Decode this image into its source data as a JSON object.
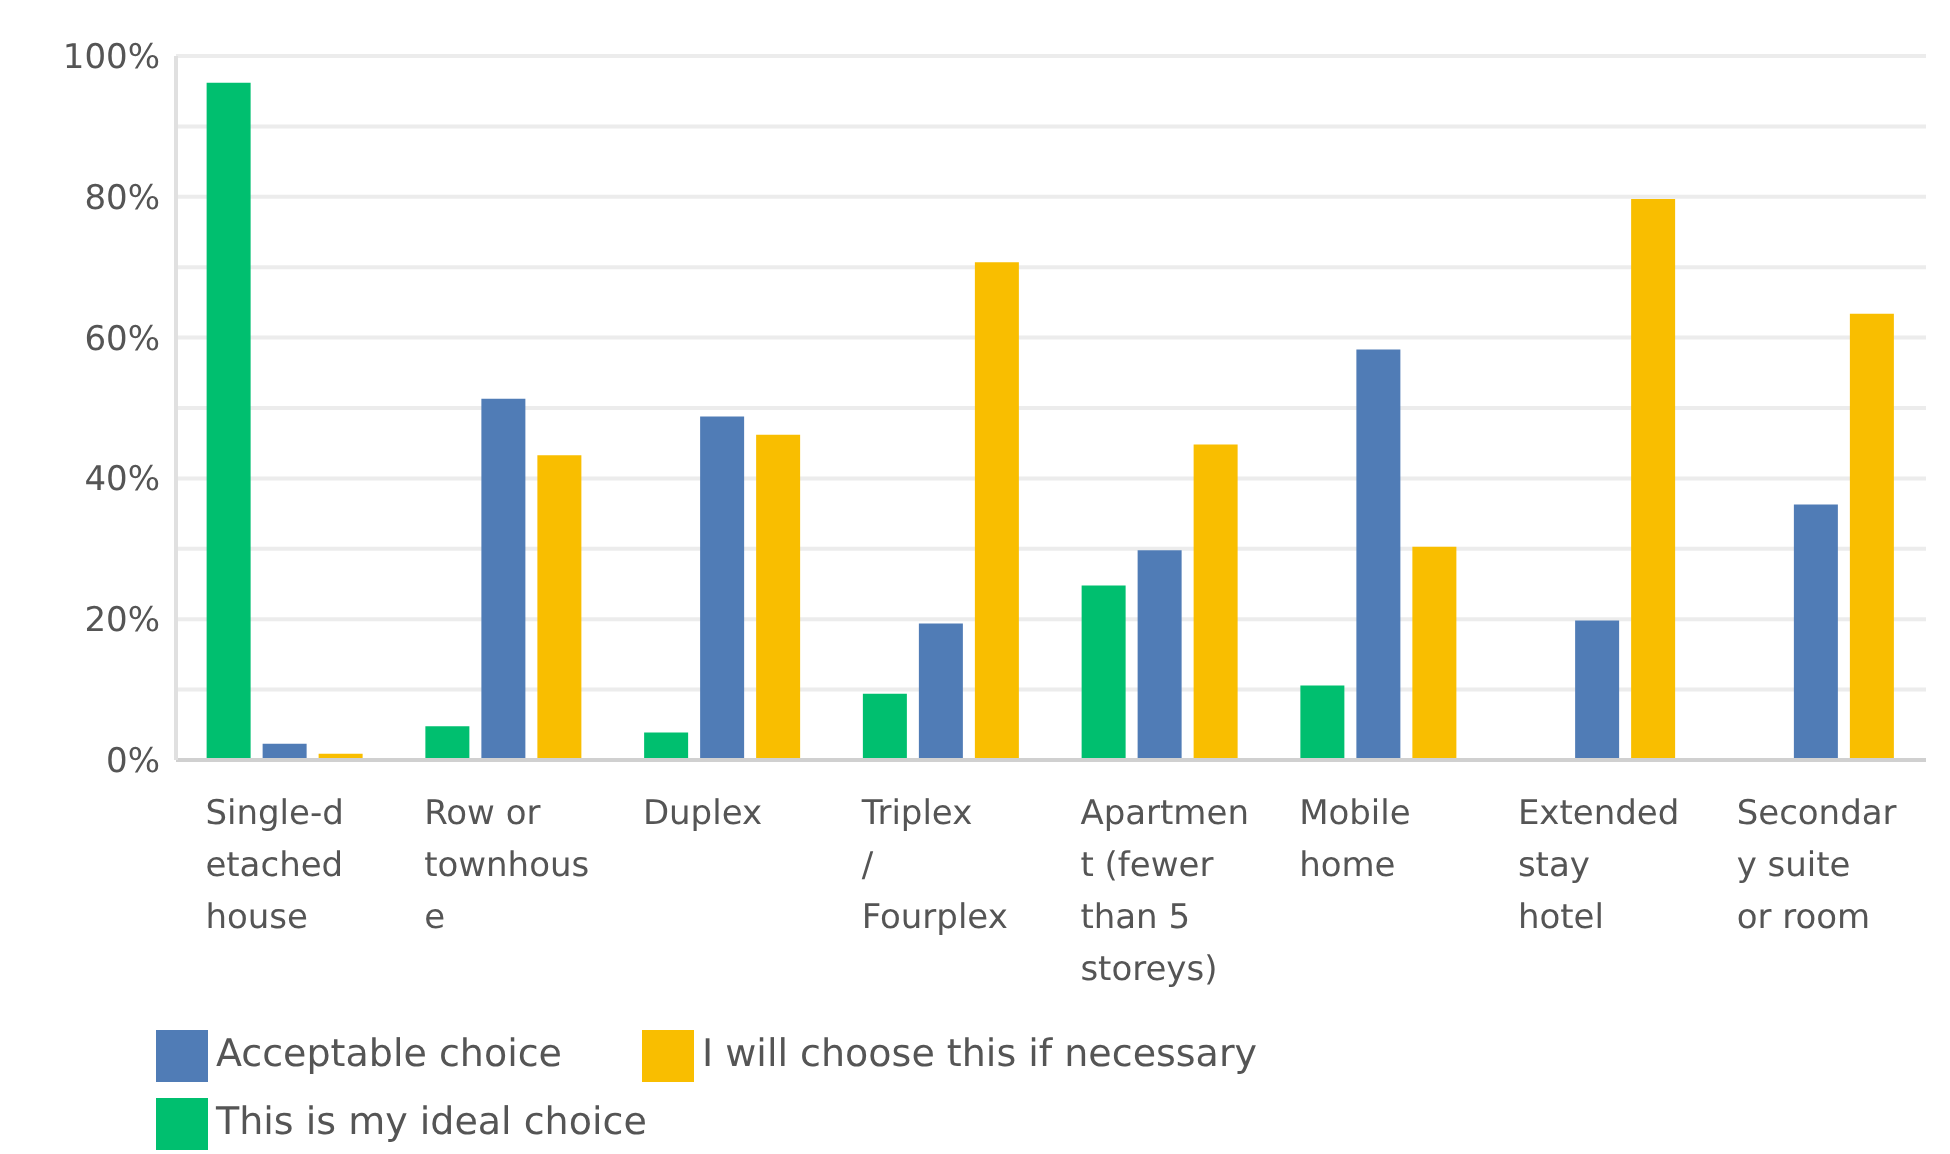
{
  "chart_data": {
    "type": "bar",
    "categories": [
      "Single-detached house",
      "Row or townhouse",
      "Duplex",
      "Triplex / Fourplex",
      "Apartment (fewer than 5 storeys)",
      "Mobile home",
      "Extended stay hotel",
      "Secondary suite or room"
    ],
    "series": [
      {
        "name": "This is my ideal choice",
        "color": "#00bf6f",
        "values": [
          96.2,
          4.8,
          3.9,
          9.4,
          24.8,
          10.6,
          0,
          0
        ]
      },
      {
        "name": "Acceptable choice",
        "color": "#507cb6",
        "values": [
          2.3,
          51.3,
          48.8,
          19.4,
          29.8,
          58.3,
          19.8,
          36.3
        ]
      },
      {
        "name": "I will choose this if necessary",
        "color": "#f9be00",
        "values": [
          0.9,
          43.3,
          46.2,
          70.7,
          44.8,
          30.3,
          79.7,
          63.4
        ]
      }
    ],
    "ylim": [
      0,
      100
    ],
    "yticks": [
      {
        "value": 0,
        "label": "0%"
      },
      {
        "value": 10,
        "label": null
      },
      {
        "value": 20,
        "label": "20%"
      },
      {
        "value": 30,
        "label": null
      },
      {
        "value": 40,
        "label": "40%"
      },
      {
        "value": 50,
        "label": null
      },
      {
        "value": 60,
        "label": "60%"
      },
      {
        "value": 70,
        "label": null
      },
      {
        "value": 80,
        "label": "80%"
      },
      {
        "value": 90,
        "label": null
      },
      {
        "value": 100,
        "label": "100%"
      }
    ],
    "grid": "y",
    "legend": "bottom left"
  }
}
